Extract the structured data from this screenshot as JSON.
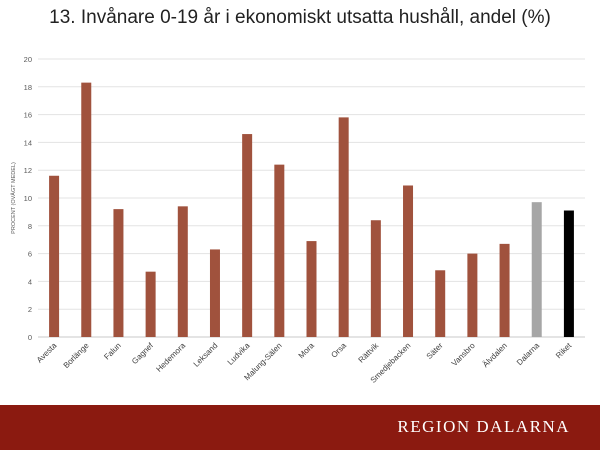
{
  "title": "13. Invånare 0-19 år i ekonomiskt utsatta hushåll, andel (%)",
  "footer": {
    "brand": "REGION DALARNA"
  },
  "chart_data": {
    "type": "bar",
    "title": "13. Invånare 0-19 år i ekonomiskt utsatta hushåll, andel (%)",
    "xlabel": "",
    "ylabel": "PROCENT (OVÄGT MEDEL)",
    "ylim": [
      0,
      20
    ],
    "yticks": [
      0,
      2,
      4,
      6,
      8,
      10,
      12,
      14,
      16,
      18,
      20
    ],
    "grid": true,
    "legend": "none",
    "categories": [
      "Avesta",
      "Borlänge",
      "Falun",
      "Gagnef",
      "Hedemora",
      "Leksand",
      "Ludvika",
      "Malung-Sälen",
      "Mora",
      "Orsa",
      "Rättvik",
      "Smedjebacken",
      "Säter",
      "Vansbro",
      "Älvdalen",
      "Dalarna",
      "Riket"
    ],
    "values": [
      11.6,
      18.3,
      9.2,
      4.7,
      9.4,
      6.3,
      14.6,
      12.4,
      6.9,
      15.8,
      8.4,
      10.9,
      4.8,
      6.0,
      6.7,
      9.7,
      9.1
    ],
    "colors": [
      "#a0523d",
      "#a0523d",
      "#a0523d",
      "#a0523d",
      "#a0523d",
      "#a0523d",
      "#a0523d",
      "#a0523d",
      "#a0523d",
      "#a0523d",
      "#a0523d",
      "#a0523d",
      "#a0523d",
      "#a0523d",
      "#a0523d",
      "#a6a6a6",
      "#000000"
    ],
    "gridline_color": "#e3e3e3",
    "axis_color": "#c8c8c8"
  }
}
